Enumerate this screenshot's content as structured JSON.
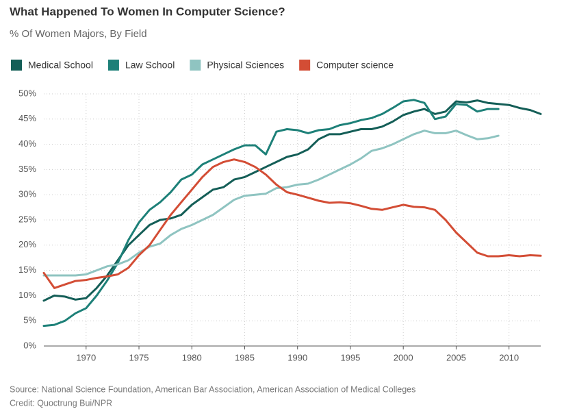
{
  "chart_data": {
    "type": "line",
    "title": "What Happened To Women In Computer Science?",
    "subtitle": "% Of Women Majors, By Field",
    "source": "Source: National Science Foundation, American Bar Association, American Association of Medical Colleges",
    "credit": "Credit: Quoctrung Bui/NPR",
    "x": [
      1966,
      1967,
      1968,
      1969,
      1970,
      1971,
      1972,
      1973,
      1974,
      1975,
      1976,
      1977,
      1978,
      1979,
      1980,
      1981,
      1982,
      1983,
      1984,
      1985,
      1986,
      1987,
      1988,
      1989,
      1990,
      1991,
      1992,
      1993,
      1994,
      1995,
      1996,
      1997,
      1998,
      1999,
      2000,
      2001,
      2002,
      2003,
      2004,
      2005,
      2006,
      2007,
      2008,
      2009,
      2010,
      2011,
      2012,
      2013
    ],
    "series": [
      {
        "name": "Medical School",
        "color": "#145e57",
        "values": [
          9,
          10,
          9.8,
          9.2,
          9.5,
          11.5,
          14,
          17,
          20,
          22,
          24,
          25,
          25.3,
          26,
          28,
          29.5,
          31,
          31.5,
          33,
          33.5,
          34.5,
          35.5,
          36.5,
          37.5,
          38,
          39,
          41,
          42,
          42,
          42.5,
          43,
          43,
          43.5,
          44.5,
          45.8,
          46.5,
          47,
          46,
          46.5,
          48.5,
          48.3,
          48.7,
          48.2,
          48,
          47.8,
          47.2,
          46.8,
          46
        ]
      },
      {
        "name": "Law School",
        "color": "#1d8078",
        "values": [
          4,
          4.2,
          5,
          6.5,
          7.5,
          10,
          13,
          16.5,
          21,
          24.5,
          27,
          28.5,
          30.5,
          33,
          34,
          36,
          37,
          38,
          39,
          39.8,
          39.8,
          38,
          42.5,
          43,
          42.8,
          42.2,
          42.8,
          43,
          43.8,
          44.2,
          44.8,
          45.2,
          46,
          47.2,
          48.5,
          48.8,
          48.2,
          45,
          45.5,
          48,
          47.8,
          46.5,
          47,
          47,
          null,
          null,
          null,
          null
        ]
      },
      {
        "name": "Physical Sciences",
        "color": "#8fc4c1",
        "values": [
          14,
          14,
          14,
          14,
          14.2,
          15,
          15.8,
          16.2,
          17,
          18.5,
          19.7,
          20.3,
          22,
          23.2,
          24,
          25,
          26,
          27.5,
          29,
          29.8,
          30,
          30.2,
          31.3,
          31.5,
          32,
          32.2,
          33,
          34,
          35,
          36,
          37.2,
          38.7,
          39.2,
          40,
          41,
          42,
          42.7,
          42.2,
          42.2,
          42.7,
          41.8,
          41,
          41.2,
          41.7,
          null,
          null,
          null,
          null
        ]
      },
      {
        "name": "Computer science",
        "color": "#d34d35",
        "values": [
          14.5,
          11.5,
          12.2,
          12.9,
          13.1,
          13.5,
          13.8,
          14.2,
          15.5,
          18,
          20,
          23,
          26,
          28.5,
          31,
          33.5,
          35.5,
          36.5,
          37,
          36.5,
          35.5,
          34,
          32,
          30.5,
          30,
          29.4,
          28.8,
          28.4,
          28.5,
          28.3,
          27.8,
          27.2,
          27,
          27.5,
          28,
          27.6,
          27.5,
          27,
          25,
          22.5,
          20.5,
          18.5,
          17.8,
          17.8,
          18,
          17.8,
          18,
          17.9
        ]
      }
    ],
    "xlim": [
      1966,
      2013
    ],
    "xticks": [
      1970,
      1975,
      1980,
      1985,
      1990,
      1995,
      2000,
      2005,
      2010
    ],
    "ylim": [
      0,
      50
    ],
    "yticks": [
      {
        "value": 0,
        "label": "0%"
      },
      {
        "value": 5,
        "label": "5%"
      },
      {
        "value": 10,
        "label": "10%"
      },
      {
        "value": 15,
        "label": "15%"
      },
      {
        "value": 20,
        "label": "20%"
      },
      {
        "value": 25,
        "label": "25%"
      },
      {
        "value": 30,
        "label": "30%"
      },
      {
        "value": 35,
        "label": "35%"
      },
      {
        "value": 40,
        "label": "40%"
      },
      {
        "value": 45,
        "label": "45%"
      },
      {
        "value": 50,
        "label": "50%"
      }
    ],
    "grid": true
  }
}
